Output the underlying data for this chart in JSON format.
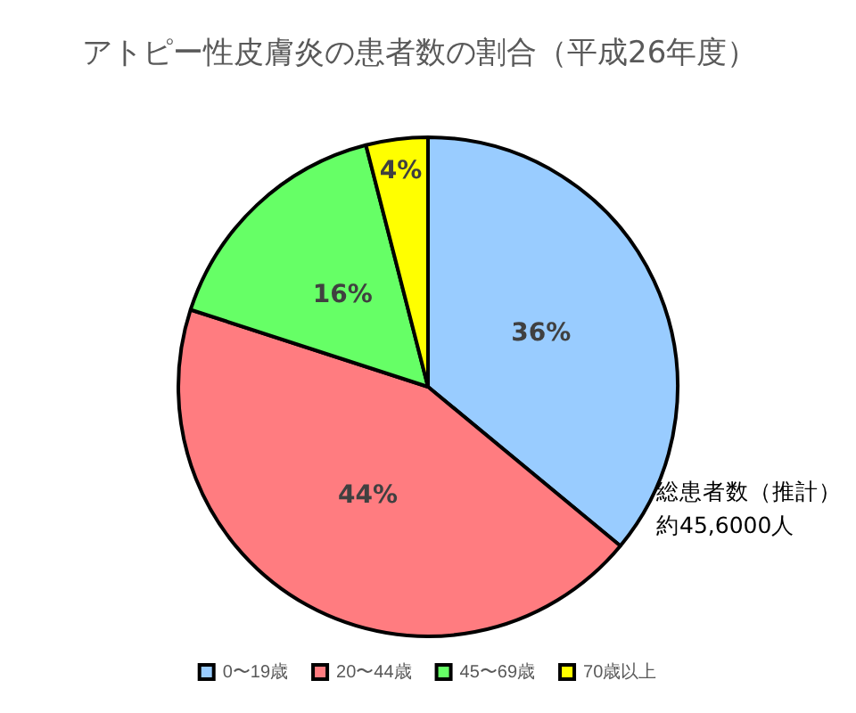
{
  "chart_data": {
    "type": "pie",
    "title": "アトピー性皮膚炎の患者数の割合（平成26年度）",
    "categories": [
      "0〜19歳",
      "20〜44歳",
      "45〜69歳",
      "70歳以上"
    ],
    "values": [
      36,
      44,
      16,
      4
    ],
    "value_labels": [
      "36%",
      "44%",
      "16%",
      "4%"
    ],
    "colors": [
      "#99ccff",
      "#ff7c80",
      "#66ff66",
      "#ffff00"
    ],
    "legend": "bottom",
    "annotations": [
      "総患者数（推計）",
      "約45,6000人"
    ]
  }
}
